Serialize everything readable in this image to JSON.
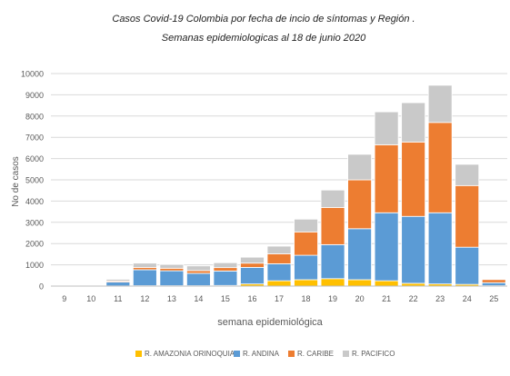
{
  "chart_data": {
    "type": "bar",
    "stacked": true,
    "title": "Casos Covid-19 Colombia por fecha de incio de síntomas  y Región .",
    "subtitle": "Semanas epidemiologicas al 18 de junio 2020",
    "xlabel": "semana epidemiológica",
    "ylabel": "No de casos",
    "ylim": [
      0,
      10000
    ],
    "yticks": [
      0,
      1000,
      2000,
      3000,
      4000,
      5000,
      6000,
      7000,
      8000,
      9000,
      10000
    ],
    "grid": "horizontal",
    "legend": "bottom",
    "categories": [
      "9",
      "10",
      "11",
      "12",
      "13",
      "14",
      "15",
      "16",
      "17",
      "18",
      "19",
      "20",
      "21",
      "22",
      "23",
      "24",
      "25"
    ],
    "series": [
      {
        "name": "R. AMAZONIA ORINOQUIA",
        "color": "#FFC000",
        "values": [
          0,
          0,
          10,
          20,
          20,
          20,
          30,
          100,
          250,
          300,
          350,
          300,
          250,
          130,
          100,
          80,
          20
        ]
      },
      {
        "name": "R. ANDINA",
        "color": "#5B9BD5",
        "values": [
          20,
          40,
          180,
          750,
          700,
          580,
          680,
          780,
          800,
          1150,
          1600,
          2400,
          3200,
          3150,
          3350,
          1750,
          140
        ]
      },
      {
        "name": "R. CARIBE",
        "color": "#ED7D31",
        "values": [
          0,
          10,
          50,
          110,
          120,
          130,
          160,
          200,
          470,
          1100,
          1750,
          2300,
          3200,
          3500,
          4250,
          2900,
          150
        ]
      },
      {
        "name": "R. PACIFICO",
        "color": "#C9C9C9",
        "values": [
          10,
          20,
          80,
          200,
          180,
          220,
          230,
          280,
          360,
          600,
          820,
          1200,
          1550,
          1850,
          1750,
          1000,
          30
        ]
      }
    ]
  }
}
